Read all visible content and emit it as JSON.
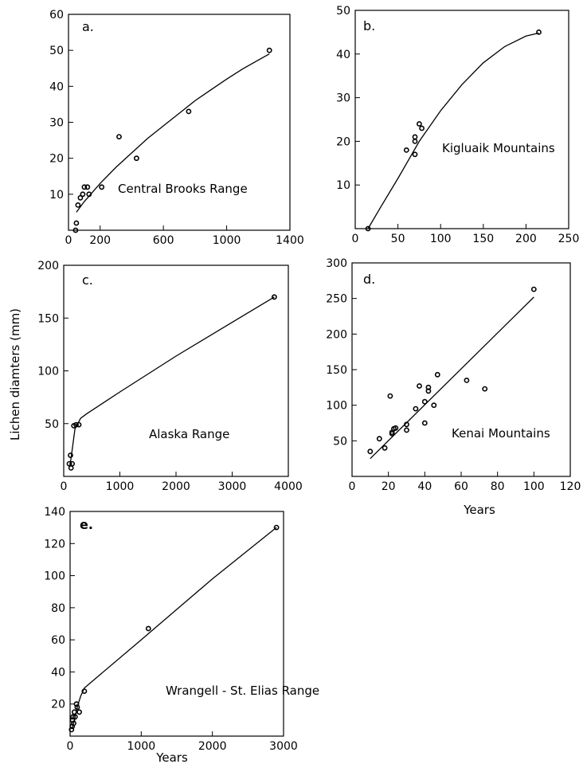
{
  "shared_ylabel": "Lichen diamters (mm)",
  "chart_data": [
    {
      "id": "a",
      "type": "scatter",
      "letter": "a.",
      "label": "Central Brooks Range",
      "xlim": [
        0,
        1400
      ],
      "ylim": [
        0,
        60
      ],
      "xticks": [
        0,
        200,
        600,
        1000,
        1400
      ],
      "yticks": [
        10,
        20,
        30,
        40,
        50,
        60
      ],
      "xlabel": "",
      "points": [
        [
          45,
          0
        ],
        [
          50,
          2
        ],
        [
          60,
          7
        ],
        [
          75,
          9
        ],
        [
          90,
          10
        ],
        [
          100,
          12
        ],
        [
          120,
          12
        ],
        [
          130,
          10
        ],
        [
          210,
          12
        ],
        [
          320,
          26
        ],
        [
          430,
          20
        ],
        [
          760,
          33
        ],
        [
          1270,
          50
        ]
      ],
      "curve": [
        [
          50,
          5
        ],
        [
          100,
          8
        ],
        [
          200,
          13
        ],
        [
          300,
          17.5
        ],
        [
          400,
          21.5
        ],
        [
          500,
          25.5
        ],
        [
          600,
          29
        ],
        [
          700,
          32.5
        ],
        [
          800,
          36
        ],
        [
          900,
          39
        ],
        [
          1000,
          42
        ],
        [
          1100,
          44.8
        ],
        [
          1200,
          47.3
        ],
        [
          1270,
          49
        ]
      ]
    },
    {
      "id": "b",
      "type": "scatter",
      "letter": "b.",
      "label": "Kigluaik Mountains",
      "xlim": [
        0,
        250
      ],
      "ylim": [
        0,
        50
      ],
      "xticks": [
        0,
        50,
        100,
        150,
        200,
        250
      ],
      "yticks": [
        10,
        20,
        30,
        40,
        50
      ],
      "xlabel": "",
      "points": [
        [
          15,
          0
        ],
        [
          60,
          18
        ],
        [
          70,
          17
        ],
        [
          70,
          20
        ],
        [
          70,
          21
        ],
        [
          75,
          24
        ],
        [
          78,
          23
        ],
        [
          215,
          45
        ]
      ],
      "curve": [
        [
          15,
          0
        ],
        [
          30,
          5
        ],
        [
          50,
          11.5
        ],
        [
          75,
          20
        ],
        [
          100,
          27
        ],
        [
          125,
          33
        ],
        [
          150,
          38
        ],
        [
          175,
          41.7
        ],
        [
          200,
          44.1
        ],
        [
          215,
          44.8
        ]
      ]
    },
    {
      "id": "c",
      "type": "scatter",
      "letter": "c.",
      "label": "Alaska Range",
      "xlim": [
        0,
        4000
      ],
      "ylim": [
        0,
        200
      ],
      "xticks": [
        0,
        1000,
        2000,
        3000,
        4000
      ],
      "yticks": [
        50,
        100,
        150,
        200
      ],
      "xlabel": "",
      "points": [
        [
          100,
          12
        ],
        [
          120,
          20
        ],
        [
          130,
          8
        ],
        [
          150,
          12
        ],
        [
          180,
          48
        ],
        [
          220,
          49
        ],
        [
          270,
          49
        ],
        [
          3750,
          170
        ]
      ],
      "curve": [
        [
          110,
          10
        ],
        [
          150,
          25
        ],
        [
          200,
          45
        ],
        [
          300,
          55
        ],
        [
          400,
          59
        ],
        [
          1000,
          80
        ],
        [
          2000,
          114
        ],
        [
          3000,
          146
        ],
        [
          3750,
          170
        ]
      ]
    },
    {
      "id": "d",
      "type": "scatter",
      "letter": "d.",
      "label": "Kenai Mountains",
      "xlim": [
        0,
        120
      ],
      "ylim": [
        0,
        300
      ],
      "xticks": [
        0,
        20,
        40,
        60,
        80,
        100,
        120
      ],
      "yticks": [
        50,
        100,
        150,
        200,
        250,
        300
      ],
      "xlabel": "Years",
      "points": [
        [
          10,
          35
        ],
        [
          15,
          53
        ],
        [
          18,
          40
        ],
        [
          21,
          113
        ],
        [
          22,
          60
        ],
        [
          22,
          62
        ],
        [
          23,
          67
        ],
        [
          24,
          68
        ],
        [
          30,
          65
        ],
        [
          30,
          73
        ],
        [
          35,
          95
        ],
        [
          37,
          127
        ],
        [
          40,
          75
        ],
        [
          40,
          105
        ],
        [
          42,
          120
        ],
        [
          42,
          125
        ],
        [
          45,
          100
        ],
        [
          47,
          143
        ],
        [
          63,
          135
        ],
        [
          73,
          123
        ],
        [
          100,
          263
        ]
      ],
      "curve": [
        [
          10,
          25
        ],
        [
          100,
          252
        ]
      ]
    },
    {
      "id": "e",
      "type": "scatter",
      "letter": "e.",
      "label": "Wrangell - St. Elias Range",
      "xlim": [
        0,
        3000
      ],
      "ylim": [
        0,
        140
      ],
      "xticks": [
        0,
        1000,
        2000,
        3000
      ],
      "yticks": [
        20,
        40,
        60,
        80,
        100,
        120,
        140
      ],
      "xlabel": "Years",
      "points": [
        [
          20,
          4
        ],
        [
          30,
          6
        ],
        [
          35,
          10
        ],
        [
          40,
          12
        ],
        [
          50,
          8
        ],
        [
          60,
          15
        ],
        [
          70,
          12
        ],
        [
          90,
          20
        ],
        [
          100,
          18
        ],
        [
          130,
          15
        ],
        [
          200,
          28
        ],
        [
          1100,
          67
        ],
        [
          2900,
          130
        ]
      ],
      "curve": [
        [
          30,
          5
        ],
        [
          60,
          10
        ],
        [
          100,
          18
        ],
        [
          150,
          25
        ],
        [
          200,
          30
        ],
        [
          400,
          37.5
        ],
        [
          1000,
          60
        ],
        [
          2000,
          98
        ],
        [
          2900,
          130
        ]
      ]
    }
  ]
}
